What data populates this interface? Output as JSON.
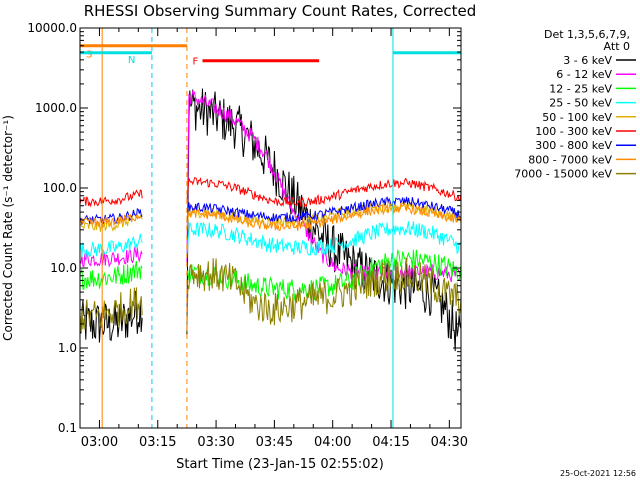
{
  "chart_data": {
    "type": "line",
    "title": "RHESSI Observing Summary Count Rates, Corrected",
    "xlabel": "Start Time (23-Jan-15 02:55:02)",
    "ylabel": "Corrected Count Rate (s⁻¹ detector⁻¹)",
    "yscale": "log",
    "ylim": [
      0.1,
      10000
    ],
    "xlim_minutes": [
      0,
      98
    ],
    "x_ticks": [
      {
        "m": 5,
        "label": "03:00"
      },
      {
        "m": 20,
        "label": "03:15"
      },
      {
        "m": 35,
        "label": "03:30"
      },
      {
        "m": 50,
        "label": "03:45"
      },
      {
        "m": 65,
        "label": "04:00"
      },
      {
        "m": 80,
        "label": "04:15"
      },
      {
        "m": 95,
        "label": "04:30"
      }
    ],
    "y_ticks": [
      {
        "v": 10000,
        "label": "10000.0"
      },
      {
        "v": 1000,
        "label": "1000.0"
      },
      {
        "v": 100,
        "label": "100.0"
      },
      {
        "v": 10,
        "label": "10.0"
      },
      {
        "v": 1,
        "label": "1.0"
      },
      {
        "v": 0.1,
        "label": "0.1"
      }
    ],
    "legend": {
      "position": "right",
      "header": [
        "Det 1,3,5,6,7,9,",
        "Att 0"
      ],
      "entries": [
        {
          "label": "3 - 6 keV",
          "color": "#000000"
        },
        {
          "label": "6 - 12 keV",
          "color": "#ff00ff"
        },
        {
          "label": "12 - 25 keV",
          "color": "#00ff00"
        },
        {
          "label": "25 - 50 keV",
          "color": "#00ffff"
        },
        {
          "label": "50 - 100 keV",
          "color": "#e0b000"
        },
        {
          "label": "100 - 300 keV",
          "color": "#ff0000"
        },
        {
          "label": "300 - 800 keV",
          "color": "#0000ff"
        },
        {
          "label": "800 - 7000 keV",
          "color": "#ff8c00"
        },
        {
          "label": "7000 - 15000 keV",
          "color": "#8b8000"
        }
      ]
    },
    "flag_bars": [
      {
        "label": "S",
        "color": "#ff8000",
        "x0": 0,
        "x1": 27.5,
        "level": 6000
      },
      {
        "label": "N",
        "color": "#00e0e0",
        "x0": 0,
        "x1": 18.5,
        "level": 4900
      },
      {
        "label": "F",
        "color": "#ff0000",
        "x0": 31.5,
        "x1": 61.5,
        "level": 3900
      },
      {
        "label": "",
        "color": "#00e0e0",
        "x0": 80.5,
        "x1": 98,
        "level": 4900
      }
    ],
    "vertical_lines": [
      {
        "x": 5.7,
        "color": "#ff8000",
        "dashed": false
      },
      {
        "x": 18.5,
        "color": "#00c8ff",
        "dashed": true
      },
      {
        "x": 27.5,
        "color": "#ff8000",
        "dashed": true
      },
      {
        "x": 80.5,
        "color": "#00e0e0",
        "dashed": false
      },
      {
        "x": 98,
        "color": "#00c8ff",
        "dashed": true
      }
    ],
    "gaps": [
      [
        16.2,
        27.2
      ]
    ],
    "series": [
      {
        "name": "3 - 6 keV",
        "color": "#000000",
        "noise": 0.3,
        "points": [
          [
            0,
            2
          ],
          [
            5,
            2
          ],
          [
            10,
            2
          ],
          [
            16,
            3.2
          ],
          [
            27.5,
            2
          ],
          [
            28,
            1100
          ],
          [
            30,
            1000
          ],
          [
            35,
            800
          ],
          [
            40,
            600
          ],
          [
            45,
            350
          ],
          [
            50,
            170
          ],
          [
            53,
            100
          ],
          [
            58,
            45
          ],
          [
            62,
            25
          ],
          [
            66,
            16
          ],
          [
            70,
            11
          ],
          [
            74,
            8.5
          ],
          [
            78,
            7
          ],
          [
            82,
            6
          ],
          [
            86,
            5.5
          ],
          [
            90,
            5
          ],
          [
            94,
            3
          ],
          [
            98,
            1.2
          ]
        ]
      },
      {
        "name": "6 - 12 keV",
        "color": "#ff00ff",
        "noise": 0.1,
        "points": [
          [
            0,
            13
          ],
          [
            5,
            13
          ],
          [
            10,
            13.5
          ],
          [
            16,
            15
          ],
          [
            27.5,
            12
          ],
          [
            28,
            1400
          ],
          [
            30,
            1300
          ],
          [
            35,
            1000
          ],
          [
            40,
            700
          ],
          [
            45,
            400
          ],
          [
            48,
            250
          ],
          [
            50,
            160
          ],
          [
            54,
            60
          ],
          [
            58,
            30
          ],
          [
            62,
            15
          ],
          [
            66,
            10
          ],
          [
            70,
            9
          ],
          [
            74,
            8.5
          ],
          [
            78,
            8.5
          ],
          [
            82,
            9
          ],
          [
            86,
            9
          ],
          [
            90,
            9
          ],
          [
            94,
            8.5
          ],
          [
            98,
            8
          ]
        ]
      },
      {
        "name": "12 - 25 keV",
        "color": "#00ff00",
        "noise": 0.14,
        "points": [
          [
            0,
            7.5
          ],
          [
            5,
            7.5
          ],
          [
            10,
            8
          ],
          [
            16,
            10
          ],
          [
            27.5,
            7
          ],
          [
            28,
            9
          ],
          [
            32,
            8.5
          ],
          [
            36,
            8
          ],
          [
            40,
            7
          ],
          [
            45,
            6
          ],
          [
            50,
            5.5
          ],
          [
            55,
            5.5
          ],
          [
            60,
            5.5
          ],
          [
            65,
            6
          ],
          [
            70,
            7
          ],
          [
            75,
            10
          ],
          [
            80,
            12.5
          ],
          [
            85,
            13
          ],
          [
            90,
            12
          ],
          [
            95,
            10
          ],
          [
            98,
            9
          ]
        ]
      },
      {
        "name": "25 - 50 keV",
        "color": "#00ffff",
        "noise": 0.1,
        "points": [
          [
            0,
            17
          ],
          [
            5,
            17
          ],
          [
            10,
            18
          ],
          [
            16,
            22
          ],
          [
            27.5,
            15
          ],
          [
            28,
            30
          ],
          [
            32,
            30
          ],
          [
            36,
            29
          ],
          [
            40,
            26
          ],
          [
            45,
            22
          ],
          [
            50,
            19
          ],
          [
            55,
            18
          ],
          [
            60,
            18
          ],
          [
            65,
            19
          ],
          [
            70,
            22
          ],
          [
            75,
            27
          ],
          [
            80,
            31
          ],
          [
            85,
            31
          ],
          [
            90,
            28
          ],
          [
            95,
            22
          ],
          [
            98,
            18
          ]
        ]
      },
      {
        "name": "50 - 100 keV",
        "color": "#e0b000",
        "noise": 0.07,
        "points": [
          [
            0,
            33
          ],
          [
            5,
            33
          ],
          [
            10,
            35
          ],
          [
            16,
            45
          ],
          [
            27.5,
            33
          ],
          [
            28,
            50
          ],
          [
            32,
            50
          ],
          [
            36,
            48
          ],
          [
            40,
            43
          ],
          [
            45,
            39
          ],
          [
            50,
            38
          ],
          [
            55,
            38
          ],
          [
            60,
            40
          ],
          [
            65,
            45
          ],
          [
            70,
            52
          ],
          [
            75,
            57
          ],
          [
            80,
            60
          ],
          [
            85,
            58
          ],
          [
            90,
            52
          ],
          [
            95,
            45
          ],
          [
            98,
            42
          ]
        ]
      },
      {
        "name": "100 - 300 keV",
        "color": "#ff0000",
        "noise": 0.06,
        "points": [
          [
            0,
            68
          ],
          [
            5,
            68
          ],
          [
            10,
            72
          ],
          [
            16,
            85
          ],
          [
            27.5,
            75
          ],
          [
            28,
            120
          ],
          [
            32,
            118
          ],
          [
            36,
            112
          ],
          [
            40,
            100
          ],
          [
            45,
            82
          ],
          [
            50,
            68
          ],
          [
            55,
            66
          ],
          [
            60,
            68
          ],
          [
            65,
            78
          ],
          [
            70,
            92
          ],
          [
            75,
            105
          ],
          [
            80,
            115
          ],
          [
            85,
            115
          ],
          [
            90,
            100
          ],
          [
            95,
            85
          ],
          [
            98,
            75
          ]
        ]
      },
      {
        "name": "300 - 800 keV",
        "color": "#0000ff",
        "noise": 0.06,
        "points": [
          [
            0,
            40
          ],
          [
            5,
            40
          ],
          [
            10,
            42
          ],
          [
            16,
            50
          ],
          [
            27.5,
            42
          ],
          [
            28,
            58
          ],
          [
            32,
            57
          ],
          [
            36,
            54
          ],
          [
            40,
            50
          ],
          [
            45,
            45
          ],
          [
            50,
            43
          ],
          [
            55,
            43
          ],
          [
            60,
            45
          ],
          [
            65,
            50
          ],
          [
            70,
            56
          ],
          [
            75,
            63
          ],
          [
            80,
            68
          ],
          [
            85,
            68
          ],
          [
            90,
            60
          ],
          [
            95,
            52
          ],
          [
            98,
            46
          ]
        ]
      },
      {
        "name": "800 - 7000 keV",
        "color": "#ff8c00",
        "noise": 0.06,
        "points": [
          [
            0,
            37
          ],
          [
            5,
            37
          ],
          [
            10,
            39
          ],
          [
            16,
            46
          ],
          [
            27.5,
            40
          ],
          [
            28,
            48
          ],
          [
            32,
            47
          ],
          [
            36,
            45
          ],
          [
            40,
            40
          ],
          [
            45,
            35
          ],
          [
            50,
            33
          ],
          [
            55,
            33
          ],
          [
            60,
            35
          ],
          [
            65,
            40
          ],
          [
            70,
            46
          ],
          [
            75,
            52
          ],
          [
            80,
            56
          ],
          [
            85,
            55
          ],
          [
            90,
            48
          ],
          [
            95,
            42
          ],
          [
            98,
            38
          ]
        ]
      },
      {
        "name": "7000 - 15000 keV",
        "color": "#8b8000",
        "noise": 0.22,
        "points": [
          [
            0,
            2.5
          ],
          [
            5,
            2.5
          ],
          [
            10,
            3
          ],
          [
            16,
            4
          ],
          [
            27.5,
            2.5
          ],
          [
            28,
            9
          ],
          [
            32,
            8.5
          ],
          [
            36,
            8
          ],
          [
            40,
            6.5
          ],
          [
            45,
            3.5
          ],
          [
            50,
            3
          ],
          [
            55,
            3.5
          ],
          [
            60,
            4
          ],
          [
            65,
            4.5
          ],
          [
            70,
            5.5
          ],
          [
            75,
            7
          ],
          [
            80,
            8.5
          ],
          [
            85,
            8
          ],
          [
            90,
            6.5
          ],
          [
            95,
            4.5
          ],
          [
            98,
            4
          ]
        ]
      }
    ]
  },
  "footer": {
    "timestamp": "25-Oct-2021 12:56"
  }
}
